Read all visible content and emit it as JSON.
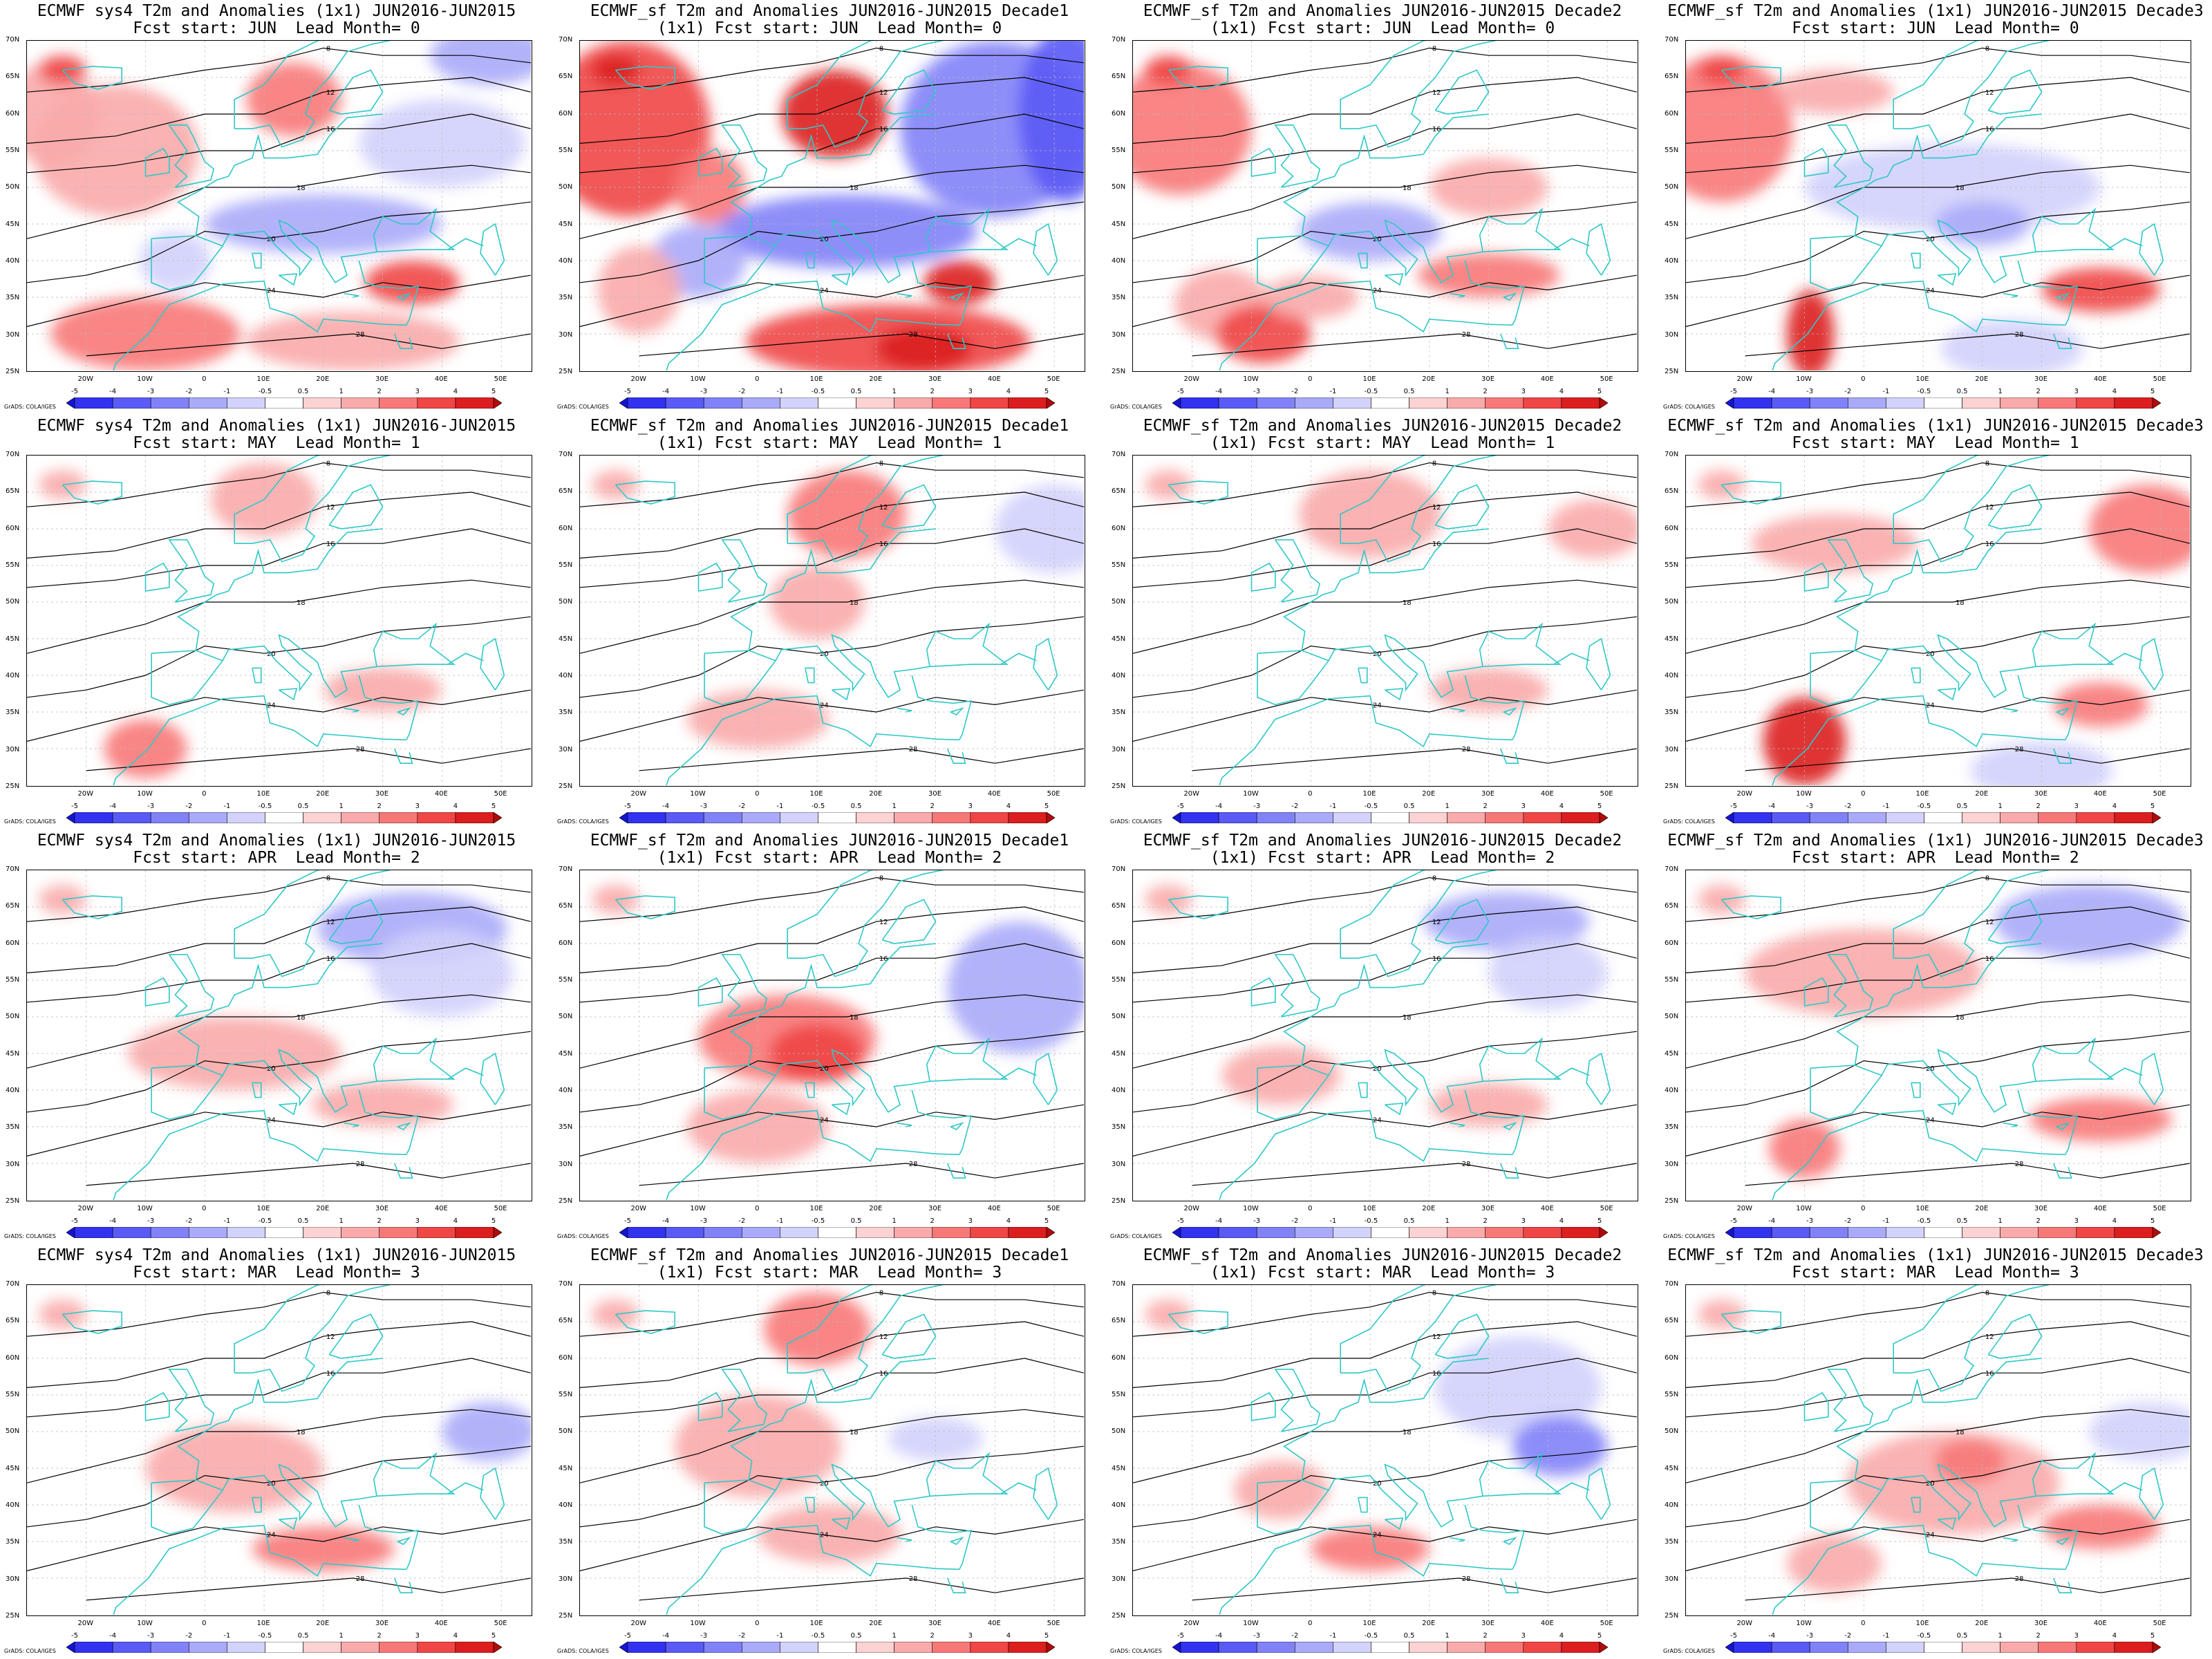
{
  "panels": [
    {
      "title1": "ECMWF sys4 T2m and Anomalies (1x1) JUN2016-JUN2015",
      "title2": "Fcst start: JUN  Lead Month= 0"
    },
    {
      "title1": "ECMWF_sf T2m and Anomalies JUN2016-JUN2015 Decade1",
      "title2": "(1x1) Fcst start: JUN  Lead Month= 0"
    },
    {
      "title1": "ECMWF_sf T2m and Anomalies JUN2016-JUN2015 Decade2",
      "title2": "(1x1) Fcst start: JUN  Lead Month= 0"
    },
    {
      "title1": "ECMWF_sf T2m and Anomalies (1x1) JUN2016-JUN2015 Decade3",
      "title2": "Fcst start: JUN  Lead Month= 0"
    },
    {
      "title1": "ECMWF sys4 T2m and Anomalies (1x1) JUN2016-JUN2015",
      "title2": "Fcst start: MAY  Lead Month= 1"
    },
    {
      "title1": "ECMWF_sf T2m and Anomalies JUN2016-JUN2015 Decade1",
      "title2": "(1x1) Fcst start: MAY  Lead Month= 1"
    },
    {
      "title1": "ECMWF_sf T2m and Anomalies JUN2016-JUN2015 Decade2",
      "title2": "(1x1) Fcst start: MAY  Lead Month= 1"
    },
    {
      "title1": "ECMWF_sf T2m and Anomalies (1x1) JUN2016-JUN2015 Decade3",
      "title2": "Fcst start: MAY  Lead Month= 1"
    },
    {
      "title1": "ECMWF sys4 T2m and Anomalies (1x1) JUN2016-JUN2015",
      "title2": "Fcst start: APR  Lead Month= 2"
    },
    {
      "title1": "ECMWF_sf T2m and Anomalies JUN2016-JUN2015 Decade1",
      "title2": "(1x1) Fcst start: APR  Lead Month= 2"
    },
    {
      "title1": "ECMWF_sf T2m and Anomalies JUN2016-JUN2015 Decade2",
      "title2": "(1x1) Fcst start: APR  Lead Month= 2"
    },
    {
      "title1": "ECMWF_sf T2m and Anomalies (1x1) JUN2016-JUN2015 Decade3",
      "title2": "Fcst start: APR  Lead Month= 2"
    },
    {
      "title1": "ECMWF sys4 T2m and Anomalies (1x1) JUN2016-JUN2015",
      "title2": "Fcst start: MAR  Lead Month= 3"
    },
    {
      "title1": "ECMWF_sf T2m and Anomalies JUN2016-JUN2015 Decade1",
      "title2": "(1x1) Fcst start: MAR  Lead Month= 3"
    },
    {
      "title1": "ECMWF_sf T2m and Anomalies JUN2016-JUN2015 Decade2",
      "title2": "(1x1) Fcst start: MAR  Lead Month= 3"
    },
    {
      "title1": "ECMWF_sf T2m and Anomalies (1x1) JUN2016-JUN2015 Decade3",
      "title2": "Fcst start: MAR  Lead Month= 3"
    }
  ],
  "lat_labels": [
    "70N",
    "65N",
    "60N",
    "55N",
    "50N",
    "45N",
    "40N",
    "35N",
    "30N",
    "25N"
  ],
  "lon_labels": [
    "20W",
    "10W",
    "0",
    "10E",
    "20E",
    "30E",
    "40E",
    "50E"
  ],
  "colorbar_labels": [
    "-5",
    "-4",
    "-3",
    "-2",
    "-1",
    "-0.5",
    "0.5",
    "1",
    "2",
    "3",
    "4",
    "5"
  ],
  "colorbar_colors": [
    "#1414d6",
    "#3232f0",
    "#5a5af6",
    "#8282f8",
    "#aaaafa",
    "#d2d2fc",
    "#ffffff",
    "#fcd2d2",
    "#faaaaa",
    "#f87878",
    "#f04646",
    "#dc1e1e",
    "#b40a0a"
  ],
  "contour_labels": [
    "8",
    "12",
    "16",
    "18",
    "20",
    "24",
    "28"
  ],
  "credit": "GrADS: COLA/IGES",
  "colors": {
    "coastline": "#2ec8c8",
    "contour": "#000000"
  }
}
